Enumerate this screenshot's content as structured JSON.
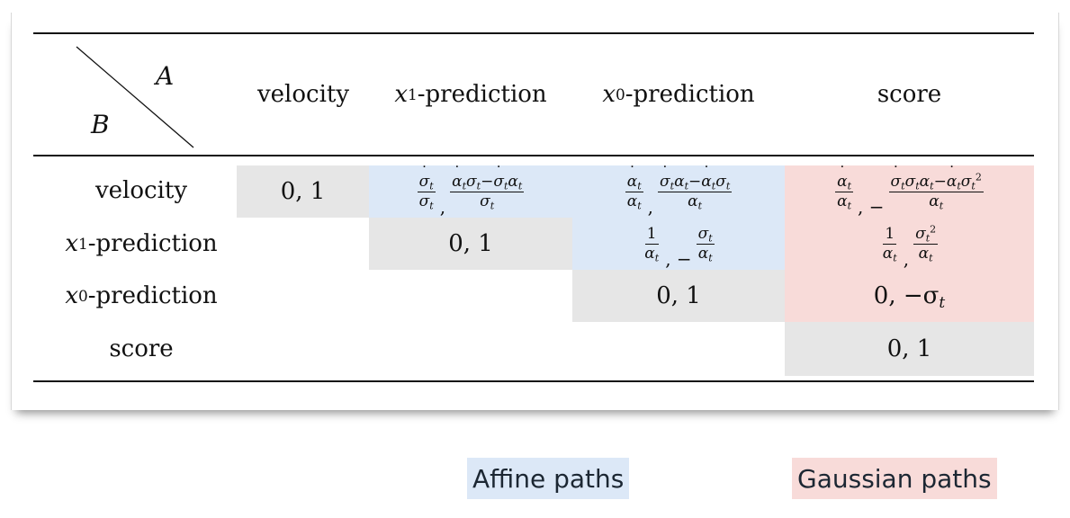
{
  "table": {
    "corner": {
      "top_label": "A",
      "bottom_label": "B"
    },
    "columns": {
      "velocity": "velocity",
      "x1_var": "x",
      "x1_sub": "1",
      "x1_suffix": "-prediction",
      "x0_var": "x",
      "x0_sub": "0",
      "x0_suffix": "-prediction",
      "score": "score"
    },
    "rows": {
      "velocity": "velocity",
      "x1_var": "x",
      "x1_sub": "1",
      "x1_suffix": "-prediction",
      "x0_var": "x",
      "x0_sub": "0",
      "x0_suffix": "-prediction",
      "score": "score"
    },
    "cells": {
      "diag_value": "0, 1",
      "x0_score": "0, −σ",
      "x0_score_sub": "t"
    }
  },
  "legend": {
    "affine": "Affine paths",
    "gaussian": "Gaussian paths"
  },
  "colors": {
    "diagonal": "#e6e6e6",
    "affine": "#dce8f7",
    "gaussian": "#f8dbd9"
  }
}
